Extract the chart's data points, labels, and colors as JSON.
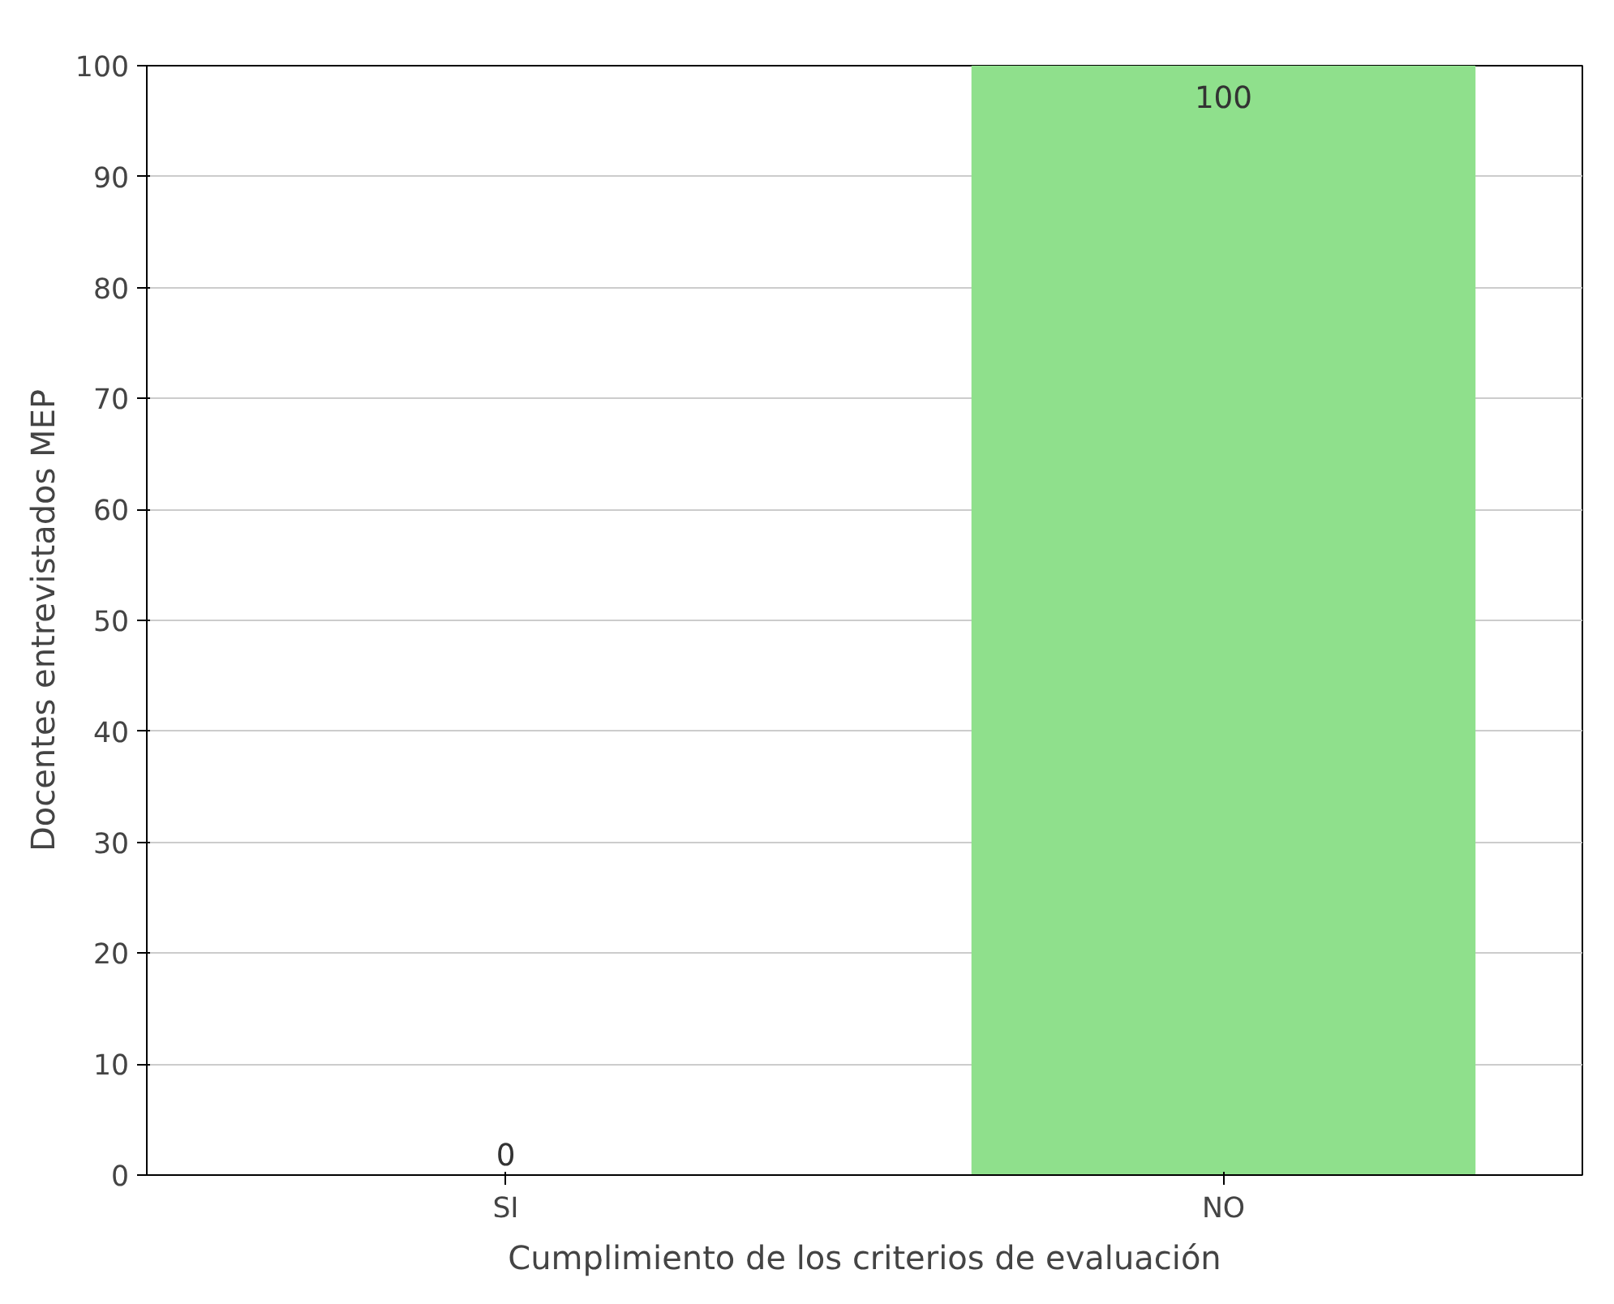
{
  "chart_data": {
    "type": "bar",
    "xlabel": "Cumplimiento de los criterios de evaluación",
    "ylabel": "Docentes entrevistados MEP",
    "categories": [
      "SI",
      "NO"
    ],
    "values": [
      0,
      100
    ],
    "colors": [
      "#f28482",
      "#8fe08c"
    ],
    "ylim": [
      0,
      100
    ],
    "yticks": [
      0,
      10,
      20,
      30,
      40,
      50,
      60,
      70,
      80,
      90,
      100
    ],
    "grid": "y",
    "data_labels": true
  }
}
